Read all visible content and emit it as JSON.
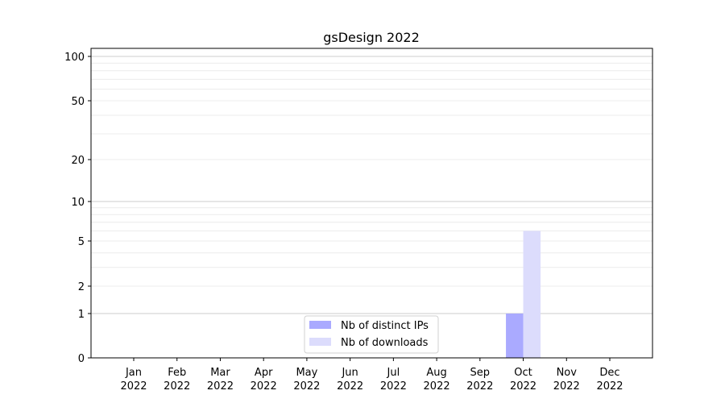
{
  "chart_data": {
    "type": "bar",
    "title": "gsDesign 2022",
    "xlabel": "",
    "ylabel": "",
    "y_scale": "symlog",
    "ylim": [
      0,
      124
    ],
    "y_ticks": [
      0,
      1,
      2,
      5,
      10,
      20,
      50,
      100
    ],
    "grid": "horizontal, major and minor",
    "legend_position": "lower center",
    "categories": [
      "Jan\n2022",
      "Feb\n2022",
      "Mar\n2022",
      "Apr\n2022",
      "May\n2022",
      "Jun\n2022",
      "Jul\n2022",
      "Aug\n2022",
      "Sep\n2022",
      "Oct\n2022",
      "Nov\n2022",
      "Dec\n2022"
    ],
    "series": [
      {
        "name": "Nb of distinct IPs",
        "color": "#aaaaff",
        "values": [
          0,
          0,
          0,
          0,
          0,
          0,
          0,
          0,
          0,
          1,
          0,
          0
        ]
      },
      {
        "name": "Nb of downloads",
        "color": "#dcdcfc",
        "values": [
          0,
          0,
          0,
          0,
          0,
          0,
          0,
          0,
          0,
          6,
          0,
          0
        ]
      }
    ]
  }
}
